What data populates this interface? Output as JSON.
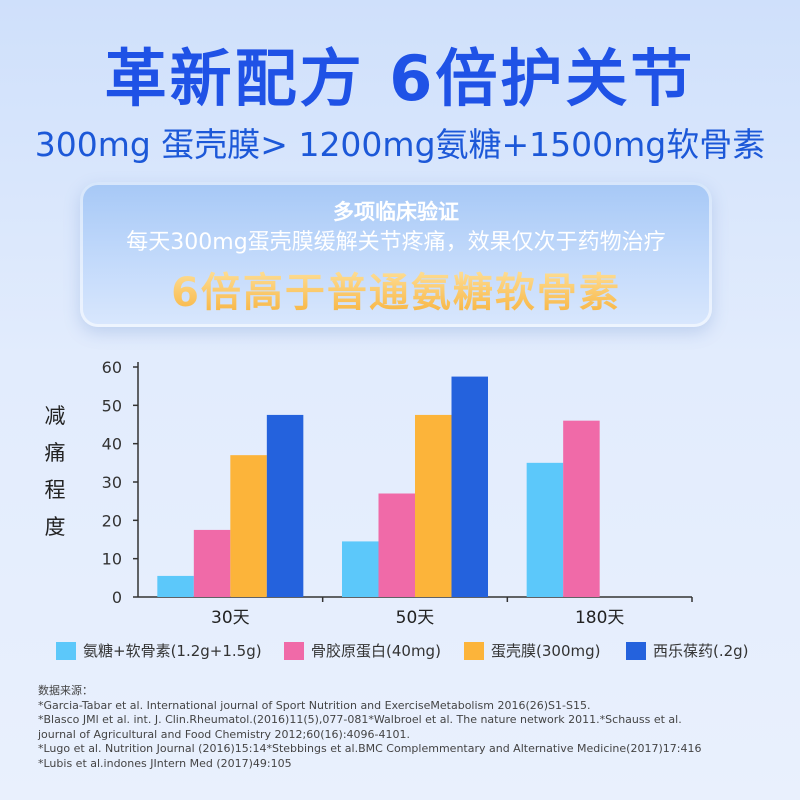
{
  "header": {
    "title": "革新配方 6倍护关节",
    "subtitle": "300mg 蛋壳膜> 1200mg氨糖+1500mg软骨素"
  },
  "card": {
    "line1": "多项临床验证",
    "line2": "每天300mg蛋壳膜缓解关节疼痛，效果仅次于药物治疗",
    "line3": "6倍高于普通氨糖软骨素"
  },
  "chart_data": {
    "type": "bar",
    "ylabel": "减痛程度",
    "xlabel": "",
    "ylim": [
      0,
      60
    ],
    "yticks": [
      "0",
      "10",
      "20",
      "30",
      "40",
      "50",
      "60"
    ],
    "categories": [
      "30天",
      "50天",
      "180天"
    ],
    "series": [
      {
        "name": "氨糖+软骨素(1.2g+1.5g)",
        "color": "#5cc8fa",
        "values": [
          5.5,
          14.5,
          35
        ]
      },
      {
        "name": "骨胶原蛋白(40mg)",
        "color": "#f06aa8",
        "values": [
          17.5,
          27,
          46
        ]
      },
      {
        "name": "蛋壳膜(300mg)",
        "color": "#fcb43a",
        "values": [
          37,
          47.5,
          null
        ]
      },
      {
        "name": "西乐葆药(.2g)",
        "color": "#2462dd",
        "values": [
          47.5,
          57.5,
          null
        ]
      }
    ],
    "grid": false,
    "legend_position": "bottom"
  },
  "references": {
    "heading": "数据来源：",
    "lines": [
      "*Garcia-Tabar et al. International journal of Sport Nutrition and ExerciseMetabolism 2016(26)S1-S15.",
      "*Blasco JMl et al. int. J. Clin.Rheumatol.(2016)11(5),077-081*Walbroel et al. The nature network 2011.*Schauss et al.",
      "journal of Agricultural and Food Chemistry 2012;60(16):4096-4101.",
      "*Lugo et al. Nutrition Journal (2016)15:14*Stebbings et al.BMC Complemmentary and Alternative Medicine(2017)17:416",
      "*Lubis et al.indones JIntern Med (2017)49:105"
    ]
  }
}
